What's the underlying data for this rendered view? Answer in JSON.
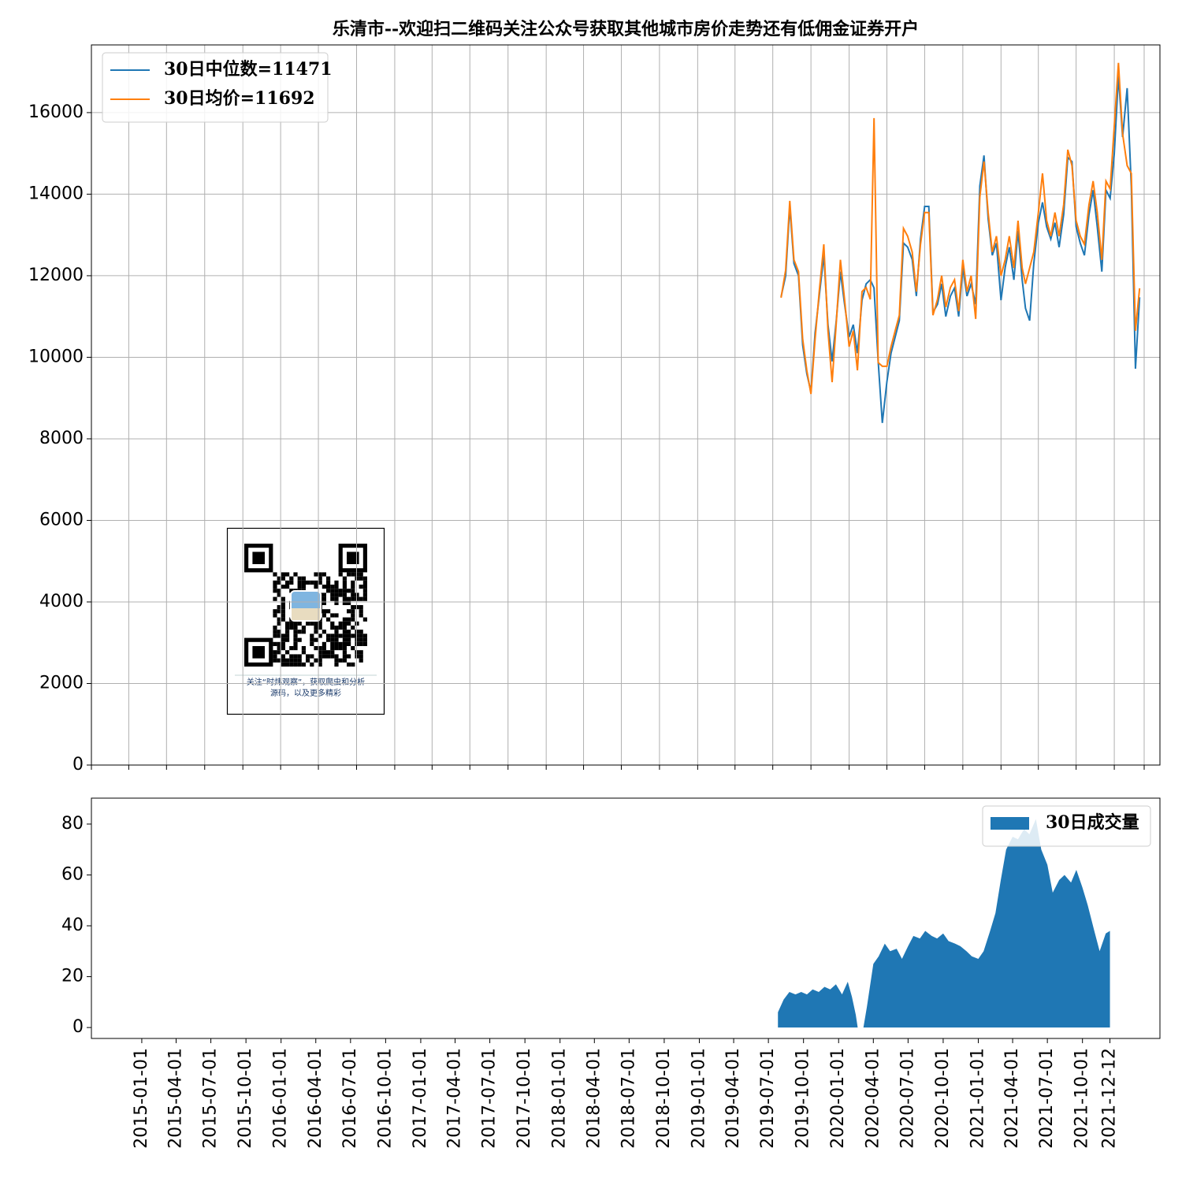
{
  "chart_data": [
    {
      "type": "line",
      "title": "乐清市--欢迎扫二维码关注公众号获取其他城市房价走势还有低佣金证券开户",
      "x": [
        "2019-07-21",
        "2019-08-01",
        "2019-08-11",
        "2019-08-21",
        "2019-09-01",
        "2019-09-11",
        "2019-09-21",
        "2019-10-01",
        "2019-10-11",
        "2019-10-21",
        "2019-11-01",
        "2019-11-11",
        "2019-11-21",
        "2019-12-01",
        "2019-12-11",
        "2019-12-21",
        "2020-01-01",
        "2020-01-11",
        "2020-01-21",
        "2020-02-01",
        "2020-02-11",
        "2020-02-21",
        "2020-03-01",
        "2020-03-11",
        "2020-03-21",
        "2020-04-01",
        "2020-04-11",
        "2020-04-21",
        "2020-05-01",
        "2020-05-11",
        "2020-05-21",
        "2020-06-01",
        "2020-06-11",
        "2020-06-21",
        "2020-07-01",
        "2020-07-11",
        "2020-07-21",
        "2020-08-01",
        "2020-08-11",
        "2020-08-21",
        "2020-09-01",
        "2020-09-11",
        "2020-09-21",
        "2020-10-01",
        "2020-10-11",
        "2020-10-21",
        "2020-11-01",
        "2020-11-11",
        "2020-11-21",
        "2020-12-01",
        "2020-12-11",
        "2020-12-21",
        "2021-01-01",
        "2021-01-11",
        "2021-01-21",
        "2021-02-01",
        "2021-02-11",
        "2021-02-21",
        "2021-03-01",
        "2021-03-11",
        "2021-03-21",
        "2021-04-01",
        "2021-04-11",
        "2021-04-21",
        "2021-05-01",
        "2021-05-11",
        "2021-05-21",
        "2021-06-01",
        "2021-06-11",
        "2021-06-21",
        "2021-07-01",
        "2021-07-11",
        "2021-07-21",
        "2021-08-01",
        "2021-08-11",
        "2021-08-21",
        "2021-09-01",
        "2021-09-11",
        "2021-09-21",
        "2021-10-01",
        "2021-10-11",
        "2021-10-21",
        "2021-11-01",
        "2021-11-11",
        "2021-11-21",
        "2021-12-01"
      ],
      "series": [
        {
          "name": "30日中位数=11471",
          "color": "#1f77b4",
          "values": [
            11480,
            12000,
            13700,
            12300,
            12000,
            10300,
            9600,
            9150,
            10600,
            11500,
            12500,
            10800,
            9900,
            10900,
            12100,
            11300,
            10500,
            10800,
            10100,
            11400,
            11800,
            11900,
            11700,
            9900,
            8390,
            9400,
            10100,
            10500,
            10900,
            12800,
            12700,
            12400,
            11500,
            12900,
            13700,
            13700,
            11100,
            11300,
            11800,
            11000,
            11500,
            11700,
            11000,
            12200,
            11500,
            11800,
            11300,
            14200,
            14950,
            13400,
            12500,
            12800,
            11400,
            12200,
            12700,
            11900,
            13100,
            11900,
            11200,
            10900,
            12300,
            13300,
            13800,
            13200,
            12900,
            13300,
            12700,
            13500,
            14900,
            14800,
            13200,
            12800,
            12500,
            13500,
            14100,
            13200,
            12100,
            14100,
            13900,
            15000,
            16900,
            15400,
            16600,
            14200,
            9720,
            11471
          ]
        },
        {
          "name": "30日均价=11692",
          "color": "#ff7f0e",
          "values": [
            11460,
            12135,
            13835,
            12390,
            12100,
            10450,
            9680,
            9100,
            10450,
            11610,
            12770,
            10650,
            9390,
            10840,
            12390,
            11420,
            10260,
            10650,
            9680,
            11610,
            11710,
            11420,
            15865,
            9870,
            9780,
            9780,
            10260,
            10650,
            11030,
            13160,
            12970,
            12580,
            11610,
            12770,
            13550,
            13550,
            11030,
            11420,
            12000,
            11230,
            11710,
            11900,
            11130,
            12390,
            11610,
            12000,
            10940,
            13930,
            14800,
            13550,
            12580,
            12970,
            12000,
            12390,
            12970,
            12190,
            13350,
            12190,
            11800,
            12190,
            12580,
            13550,
            14510,
            13350,
            12970,
            13550,
            12970,
            13740,
            15090,
            14700,
            13350,
            12970,
            12770,
            13740,
            14320,
            13550,
            12390,
            14320,
            14130,
            15670,
            17220,
            15480,
            14700,
            14510,
            10650,
            11692
          ]
        }
      ],
      "xlim": [
        "2015-01-01",
        "2022-01-19"
      ],
      "xticks": [
        "2015-01-01",
        "2015-04-01",
        "2015-07-01",
        "2015-10-01",
        "2016-01-01",
        "2016-04-01",
        "2016-07-01",
        "2016-10-01",
        "2017-01-01",
        "2017-04-01",
        "2017-07-01",
        "2017-10-01",
        "2018-01-01",
        "2018-04-01",
        "2018-07-01",
        "2018-10-01",
        "2019-01-01",
        "2019-04-01",
        "2019-07-01",
        "2019-10-01",
        "2020-01-01",
        "2020-04-01",
        "2020-07-01",
        "2020-10-01",
        "2021-01-01",
        "2021-04-01",
        "2021-07-01",
        "2021-10-01",
        "2021-12-12"
      ],
      "ylim": [
        0,
        17660
      ],
      "yticks": [
        0,
        2000,
        4000,
        6000,
        8000,
        10000,
        12000,
        14000,
        16000
      ],
      "grid": true,
      "legend": "upper left"
    },
    {
      "type": "area",
      "x": [
        "2019-07-26",
        "2019-08-10",
        "2019-08-25",
        "2019-09-10",
        "2019-09-25",
        "2019-10-10",
        "2019-10-25",
        "2019-11-10",
        "2019-11-25",
        "2019-12-10",
        "2019-12-25",
        "2020-01-10",
        "2020-01-25",
        "2020-02-05",
        "2020-02-15",
        "2020-02-20",
        "2020-02-28",
        "2020-03-06",
        "2020-03-15",
        "2020-04-01",
        "2020-04-15",
        "2020-05-01",
        "2020-05-15",
        "2020-06-01",
        "2020-06-15",
        "2020-07-01",
        "2020-07-15",
        "2020-08-01",
        "2020-08-15",
        "2020-09-01",
        "2020-09-15",
        "2020-10-01",
        "2020-10-15",
        "2020-11-01",
        "2020-11-15",
        "2020-12-01",
        "2020-12-15",
        "2021-01-01",
        "2021-01-15",
        "2021-02-01",
        "2021-02-15",
        "2021-03-01",
        "2021-03-15",
        "2021-04-01",
        "2021-04-15",
        "2021-05-01",
        "2021-05-15",
        "2021-06-01",
        "2021-06-15",
        "2021-07-01",
        "2021-07-15",
        "2021-08-01",
        "2021-08-15",
        "2021-09-01",
        "2021-09-15",
        "2021-10-01",
        "2021-10-15",
        "2021-11-01",
        "2021-11-15",
        "2021-12-01",
        "2021-12-12"
      ],
      "series": [
        {
          "name": "30日成交量",
          "color": "#1f77b4",
          "values": [
            6,
            11,
            14,
            13,
            14,
            13,
            15,
            14,
            16,
            15,
            17,
            13,
            18,
            12,
            5,
            0,
            null,
            0,
            8,
            25,
            28,
            33,
            30,
            31,
            27,
            32,
            36,
            35,
            38,
            36,
            35,
            37,
            34,
            33,
            32,
            30,
            28,
            27,
            30,
            38,
            45,
            58,
            70,
            75,
            74,
            78,
            76,
            82,
            70,
            64,
            53,
            58,
            60,
            57,
            62,
            55,
            48,
            38,
            30,
            37,
            38
          ]
        }
      ],
      "xlim": [
        "2014-08-22",
        "2022-04-22"
      ],
      "xticks": [
        "2015-01-01",
        "2015-04-01",
        "2015-07-01",
        "2015-10-01",
        "2016-01-01",
        "2016-04-01",
        "2016-07-01",
        "2016-10-01",
        "2017-01-01",
        "2017-04-01",
        "2017-07-01",
        "2017-10-01",
        "2018-01-01",
        "2018-04-01",
        "2018-07-01",
        "2018-10-01",
        "2019-01-01",
        "2019-04-01",
        "2019-07-01",
        "2019-10-01",
        "2020-01-01",
        "2020-04-01",
        "2020-07-01",
        "2020-10-01",
        "2021-01-01",
        "2021-04-01",
        "2021-07-01",
        "2021-10-01",
        "2021-12-12"
      ],
      "ylim": [
        -4.3,
        90.2
      ],
      "yticks": [
        0,
        20,
        40,
        60,
        80
      ],
      "grid": false,
      "legend": "upper right"
    }
  ],
  "qr_caption": [
    "关注“时炜观察”，获取爬虫和分析",
    "源码，以及更多精彩"
  ]
}
